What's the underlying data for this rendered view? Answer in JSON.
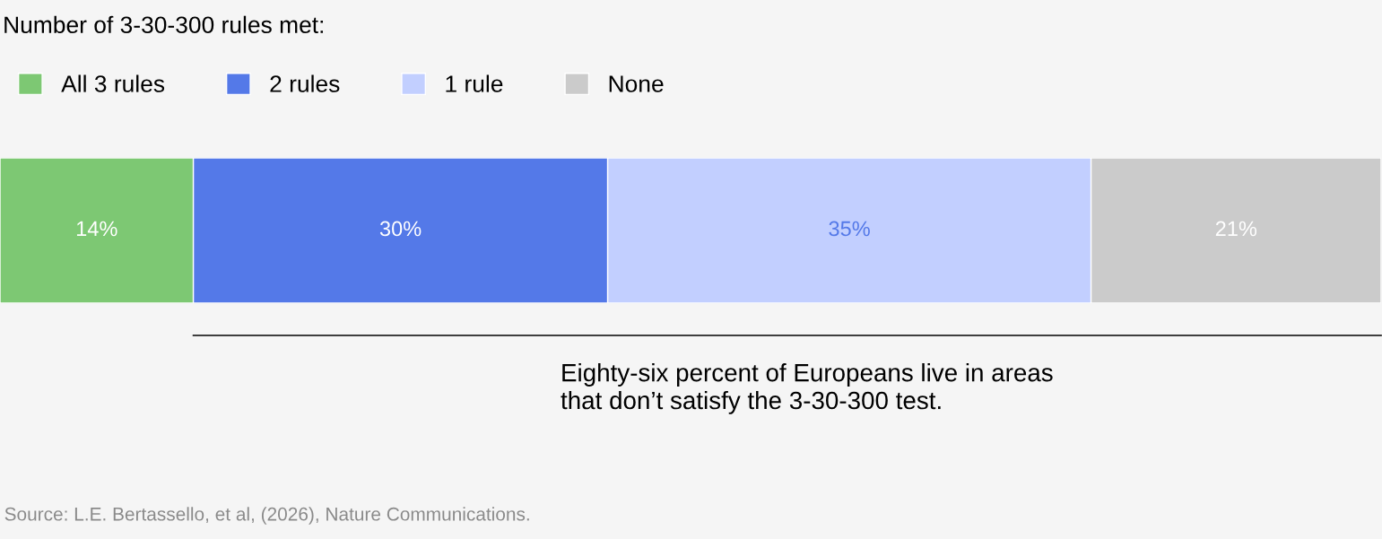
{
  "chart_data": {
    "type": "bar",
    "orientation": "horizontal",
    "stacked": true,
    "categories": [
      null
    ],
    "series": [
      {
        "name": "All 3 rules",
        "color": "#7dc873",
        "values": [
          14
        ],
        "value_labels": [
          "14%"
        ]
      },
      {
        "name": "2 rules",
        "color": "#5479e8",
        "values": [
          30
        ],
        "value_labels": [
          "30%"
        ]
      },
      {
        "name": "1 rule",
        "color": "#c2cfff",
        "values": [
          35
        ],
        "value_labels": [
          "35%"
        ]
      },
      {
        "name": "None",
        "color": "#cbcbcb",
        "values": [
          21
        ],
        "value_labels": [
          "21%"
        ]
      }
    ],
    "legend": "top left",
    "legend_title": "Number of 3-30-300 rules met:",
    "annotations": [
      "Eighty-six percent of Europeans live in areas\nthat don’t satisfy the 3-30-300 test.",
      "Source: L.E. Bertassello, et al, (2026), Nature Communications."
    ]
  }
}
